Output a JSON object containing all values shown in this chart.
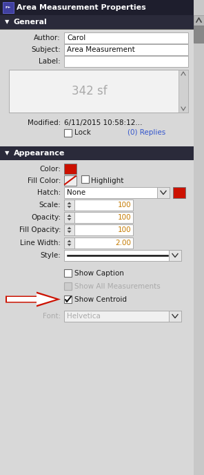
{
  "title": "Area Measurement Properties",
  "bg_color": "#d8d8d8",
  "header_bg": "#1e1e2d",
  "header_text_color": "#ffffff",
  "section_bg": "#2a2a3a",
  "section_text_color": "#ffffff",
  "label_color": "#1a1a1a",
  "link_color": "#3355cc",
  "red_color": "#cc1100",
  "author_value": "Carol",
  "subject_value": "Area Measurement",
  "content_text": "342 sf",
  "modified_text": "6/11/2015 10:58:12...",
  "lock_text": "Lock",
  "replies_text": "(0) Replies",
  "general_title": "General",
  "appearance_title": "Appearance",
  "color_label": "Color:",
  "fill_color_label": "Fill Color:",
  "highlight_label": "Highlight",
  "hatch_label": "Hatch:",
  "hatch_value": "None",
  "scale_label": "Scale:",
  "scale_value": "100",
  "opacity_label": "Opacity:",
  "opacity_value": "100",
  "fill_opacity_label": "Fill Opacity:",
  "fill_opacity_value": "100",
  "line_width_label": "Line Width:",
  "line_width_value": "2.00",
  "style_label": "Style:",
  "show_caption_text": "Show Caption",
  "show_all_text": "Show All Measurements",
  "show_centroid_text": "Show Centroid",
  "font_label": "Font:",
  "font_value": "Helvetica"
}
